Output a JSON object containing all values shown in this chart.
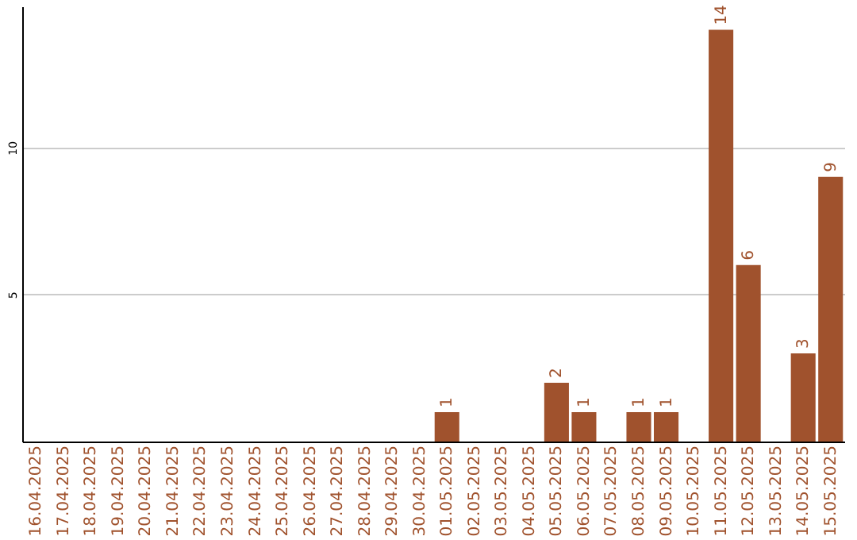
{
  "chart_data": {
    "type": "bar",
    "categories": [
      "16.04.2025",
      "17.04.2025",
      "18.04.2025",
      "19.04.2025",
      "20.04.2025",
      "21.04.2025",
      "22.04.2025",
      "23.04.2025",
      "24.04.2025",
      "25.04.2025",
      "26.04.2025",
      "27.04.2025",
      "28.04.2025",
      "29.04.2025",
      "30.04.2025",
      "01.05.2025",
      "02.05.2025",
      "03.05.2025",
      "04.05.2025",
      "05.05.2025",
      "06.05.2025",
      "07.05.2025",
      "08.05.2025",
      "09.05.2025",
      "10.05.2025",
      "11.05.2025",
      "12.05.2025",
      "13.05.2025",
      "14.05.2025",
      "15.05.2025"
    ],
    "values": [
      0,
      0,
      0,
      0,
      0,
      0,
      0,
      0,
      0,
      0,
      0,
      0,
      0,
      0,
      0,
      1,
      0,
      0,
      0,
      2,
      1,
      0,
      1,
      1,
      0,
      14,
      6,
      0,
      3,
      9
    ],
    "value_labels": [
      null,
      null,
      null,
      null,
      null,
      null,
      null,
      null,
      null,
      null,
      null,
      null,
      null,
      null,
      null,
      "1",
      null,
      null,
      null,
      "2",
      "1",
      null,
      "1",
      "1",
      null,
      "14",
      "6",
      null,
      "3",
      "9"
    ],
    "color": "#a0522d",
    "ylim": [
      0,
      14.8
    ],
    "yticks": [
      5,
      10
    ],
    "grid": "y"
  }
}
